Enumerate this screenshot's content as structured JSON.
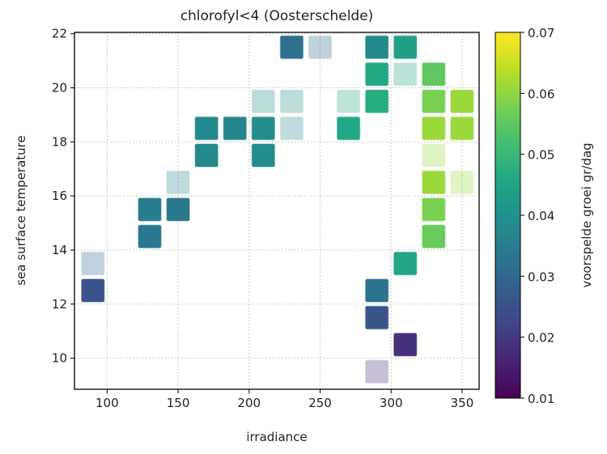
{
  "chart_data": {
    "type": "scatter",
    "title": "chlorofyl<4 (Oosterschelde)",
    "xlabel": "irradiance",
    "ylabel": "sea surface temperature",
    "xlim": [
      77,
      362
    ],
    "ylim": [
      8.85,
      22.05
    ],
    "xticks": [
      100,
      150,
      200,
      250,
      300,
      350
    ],
    "yticks": [
      10,
      12,
      14,
      16,
      18,
      20,
      22
    ],
    "grid": true,
    "marker": "square",
    "colorbar": {
      "label": "voorspelde groei gr/dag",
      "colormap": "viridis",
      "range": [
        0.01,
        0.07
      ],
      "ticks": [
        "0.01",
        "0.02",
        "0.03",
        "0.04",
        "0.05",
        "0.06",
        "0.07"
      ]
    },
    "points": [
      {
        "x": 230,
        "y": 21.5,
        "value": 0.032,
        "opacity": 1
      },
      {
        "x": 250,
        "y": 21.5,
        "value": 0.031,
        "opacity": 0.3
      },
      {
        "x": 290,
        "y": 21.5,
        "value": 0.038,
        "opacity": 1
      },
      {
        "x": 310,
        "y": 21.5,
        "value": 0.044,
        "opacity": 1
      },
      {
        "x": 290,
        "y": 20.5,
        "value": 0.046,
        "opacity": 1
      },
      {
        "x": 310,
        "y": 20.5,
        "value": 0.046,
        "opacity": 0.3
      },
      {
        "x": 330,
        "y": 20.5,
        "value": 0.055,
        "opacity": 1
      },
      {
        "x": 210,
        "y": 19.5,
        "value": 0.039,
        "opacity": 0.3
      },
      {
        "x": 230,
        "y": 19.5,
        "value": 0.039,
        "opacity": 0.3
      },
      {
        "x": 270,
        "y": 19.5,
        "value": 0.047,
        "opacity": 0.3
      },
      {
        "x": 290,
        "y": 19.5,
        "value": 0.047,
        "opacity": 1
      },
      {
        "x": 330,
        "y": 19.5,
        "value": 0.058,
        "opacity": 1
      },
      {
        "x": 350,
        "y": 19.5,
        "value": 0.061,
        "opacity": 1
      },
      {
        "x": 170,
        "y": 18.5,
        "value": 0.038,
        "opacity": 1
      },
      {
        "x": 190,
        "y": 18.5,
        "value": 0.037,
        "opacity": 1
      },
      {
        "x": 210,
        "y": 18.5,
        "value": 0.039,
        "opacity": 1
      },
      {
        "x": 230,
        "y": 18.5,
        "value": 0.039,
        "opacity": 0.3
      },
      {
        "x": 270,
        "y": 18.5,
        "value": 0.046,
        "opacity": 1
      },
      {
        "x": 330,
        "y": 18.5,
        "value": 0.061,
        "opacity": 1
      },
      {
        "x": 350,
        "y": 18.5,
        "value": 0.061,
        "opacity": 1
      },
      {
        "x": 170,
        "y": 17.5,
        "value": 0.038,
        "opacity": 1
      },
      {
        "x": 210,
        "y": 17.5,
        "value": 0.039,
        "opacity": 1
      },
      {
        "x": 330,
        "y": 17.5,
        "value": 0.061,
        "opacity": 0.3
      },
      {
        "x": 150,
        "y": 16.5,
        "value": 0.038,
        "opacity": 0.3
      },
      {
        "x": 330,
        "y": 16.5,
        "value": 0.061,
        "opacity": 1
      },
      {
        "x": 350,
        "y": 16.5,
        "value": 0.061,
        "opacity": 0.3
      },
      {
        "x": 130,
        "y": 15.5,
        "value": 0.035,
        "opacity": 1
      },
      {
        "x": 150,
        "y": 15.5,
        "value": 0.034,
        "opacity": 1
      },
      {
        "x": 330,
        "y": 15.5,
        "value": 0.058,
        "opacity": 1
      },
      {
        "x": 130,
        "y": 14.5,
        "value": 0.034,
        "opacity": 1
      },
      {
        "x": 330,
        "y": 14.5,
        "value": 0.056,
        "opacity": 1
      },
      {
        "x": 90,
        "y": 13.5,
        "value": 0.03,
        "opacity": 0.3
      },
      {
        "x": 310,
        "y": 13.5,
        "value": 0.045,
        "opacity": 1
      },
      {
        "x": 90,
        "y": 12.5,
        "value": 0.025,
        "opacity": 1
      },
      {
        "x": 290,
        "y": 12.5,
        "value": 0.033,
        "opacity": 1
      },
      {
        "x": 290,
        "y": 11.5,
        "value": 0.026,
        "opacity": 1
      },
      {
        "x": 310,
        "y": 10.5,
        "value": 0.018,
        "opacity": 1
      },
      {
        "x": 290,
        "y": 9.5,
        "value": 0.018,
        "opacity": 0.3
      }
    ]
  }
}
